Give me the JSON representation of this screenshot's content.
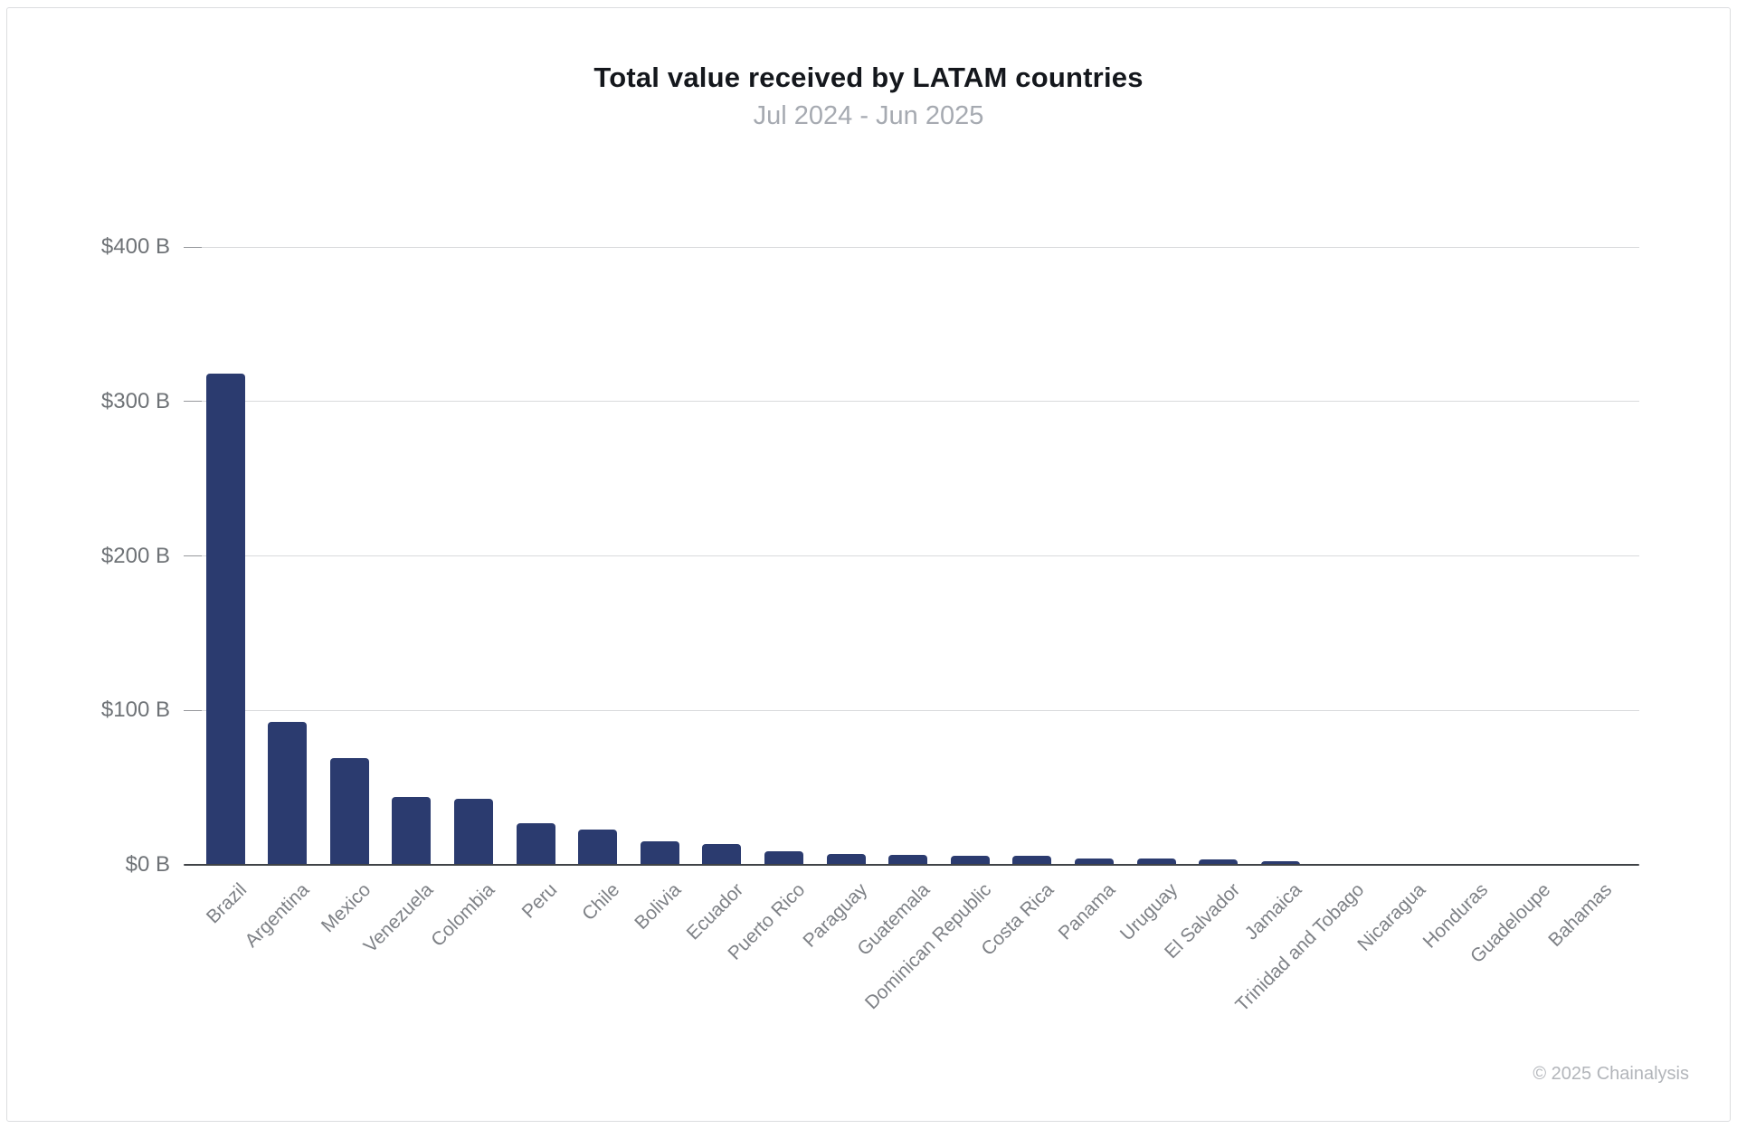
{
  "chart_data": {
    "type": "bar",
    "title": "Total value received by LATAM countries",
    "subtitle": "Jul 2024 - Jun 2025",
    "categories": [
      "Brazil",
      "Argentina",
      "Mexico",
      "Venezuela",
      "Colombia",
      "Peru",
      "Chile",
      "Bolivia",
      "Ecuador",
      "Puerto Rico",
      "Paraguay",
      "Guatemala",
      "Dominican Republic",
      "Costa Rica",
      "Panama",
      "Uruguay",
      "El Salvador",
      "Jamaica",
      "Trinidad and Tobago",
      "Nicaragua",
      "Honduras",
      "Guadeloupe",
      "Bahamas"
    ],
    "values": [
      318.3,
      92.5,
      69.1,
      43.9,
      42.7,
      26.9,
      22.8,
      15.0,
      13.6,
      8.8,
      6.8,
      6.6,
      6.0,
      5.8,
      4.4,
      3.9,
      3.6,
      2.3,
      0.8,
      0.4,
      0.25,
      0.12,
      0.08
    ],
    "value_unit": "$B",
    "ylim": [
      0,
      400
    ],
    "yticks": [
      {
        "value": 400,
        "label": "$400 B"
      },
      {
        "value": 300,
        "label": "$300 B"
      },
      {
        "value": 200,
        "label": "$200 B"
      },
      {
        "value": 100,
        "label": "$100 B"
      },
      {
        "value": 0,
        "label": "$0 B"
      }
    ],
    "bar_color": "#2b3b6f",
    "grid": true,
    "legend": false
  },
  "footer": {
    "copyright": "© 2025 Chainalysis"
  }
}
